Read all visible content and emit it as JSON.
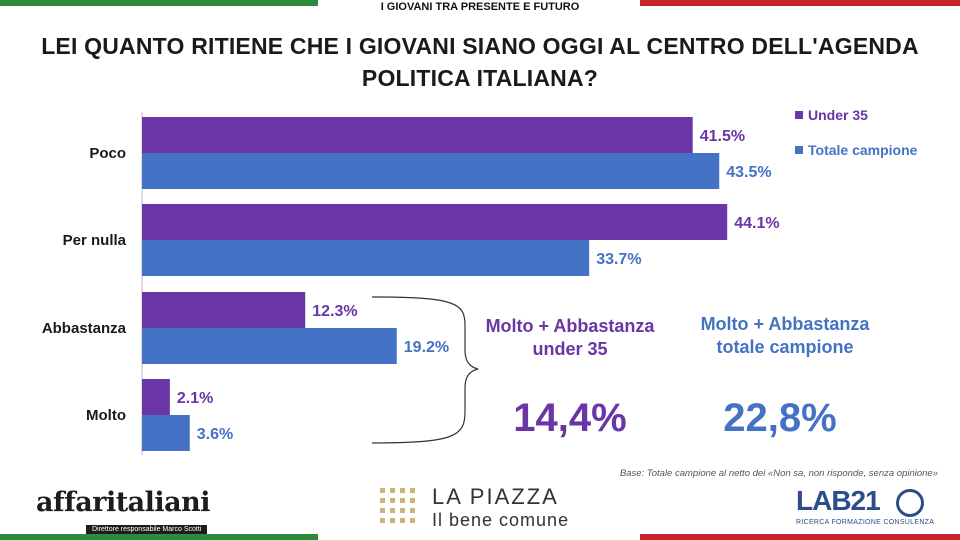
{
  "header": {
    "top_title": "I GIOVANI TRA PRESENTE E FUTURO",
    "question": "LEI QUANTO RITIENE CHE I GIOVANI SIANO OGGI AL CENTRO DELL'AGENDA POLITICA ITALIANA?"
  },
  "colors": {
    "green": "#2e8b3a",
    "red": "#c8242b",
    "under35": "#6a35a4",
    "totale": "#4472c4"
  },
  "chart_data": {
    "type": "bar",
    "orientation": "horizontal",
    "categories": [
      "Poco",
      "Per nulla",
      "Abbastanza",
      "Molto"
    ],
    "series": [
      {
        "name": "Under 35",
        "values": [
          41.5,
          44.1,
          12.3,
          2.1
        ],
        "labels": [
          "41.5%",
          "44.1%",
          "12.3%",
          "2.1%"
        ]
      },
      {
        "name": "Totale campione",
        "values": [
          43.5,
          33.7,
          19.2,
          3.6
        ],
        "labels": [
          "43.5%",
          "33.7%",
          "19.2%",
          "3.6%"
        ]
      }
    ],
    "xlim": [
      0,
      50
    ],
    "legend": "top-right",
    "grid": false
  },
  "summary": {
    "under35": {
      "title_line1": "Molto + Abbastanza",
      "title_line2": "under 35",
      "value": "14,4%"
    },
    "totale": {
      "title_line1": "Molto + Abbastanza",
      "title_line2": "totale campione",
      "value": "22,8%"
    }
  },
  "footer": {
    "base_note": "Base: Totale campione al netto dei «Non sa, non risponde, senza opinione»",
    "logo_left_name": "affaritaliani",
    "logo_left_sub": "Direttore responsabile Marco Scotti",
    "logo_center_line1": "LA PIAZZA",
    "logo_center_line2": "Il bene comune",
    "logo_right_name": "LAB21",
    "logo_right_sub": "RICERCA FORMAZIONE CONSULENZA"
  }
}
